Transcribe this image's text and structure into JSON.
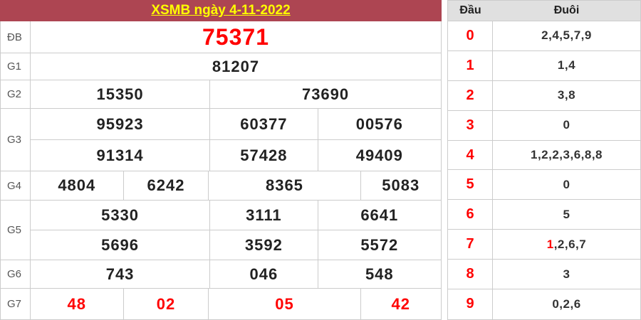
{
  "left_table": {
    "title": "XSMB ngày 4-11-2022",
    "rows": [
      {
        "label": "ĐB",
        "cells": [
          [
            "75371"
          ]
        ]
      },
      {
        "label": "G1",
        "cells": [
          [
            "81207"
          ]
        ]
      },
      {
        "label": "G2",
        "cells": [
          [
            "15350",
            "73690"
          ]
        ]
      },
      {
        "label": "G3",
        "cells": [
          [
            "95923",
            "60377",
            "00576"
          ],
          [
            "91314",
            "57428",
            "49409"
          ]
        ]
      },
      {
        "label": "G4",
        "cells": [
          [
            "4804",
            "6242",
            "8365",
            "5083"
          ]
        ]
      },
      {
        "label": "G5",
        "cells": [
          [
            "5330",
            "3111",
            "6641"
          ],
          [
            "5696",
            "3592",
            "5572"
          ]
        ]
      },
      {
        "label": "G6",
        "cells": [
          [
            "743",
            "046",
            "548"
          ]
        ]
      },
      {
        "label": "G7",
        "cells": [
          [
            "48",
            "02",
            "05",
            "42"
          ]
        ]
      }
    ]
  },
  "right_table": {
    "header": {
      "dau": "Đầu",
      "duoi": "Đuôi"
    },
    "rows": [
      {
        "dau": "0",
        "duoi_highlight": "",
        "duoi": "2,4,5,7,9"
      },
      {
        "dau": "1",
        "duoi_highlight": "",
        "duoi": "1,4"
      },
      {
        "dau": "2",
        "duoi_highlight": "",
        "duoi": "3,8"
      },
      {
        "dau": "3",
        "duoi_highlight": "",
        "duoi": "0"
      },
      {
        "dau": "4",
        "duoi_highlight": "",
        "duoi": "1,2,2,3,6,8,8"
      },
      {
        "dau": "5",
        "duoi_highlight": "",
        "duoi": "0"
      },
      {
        "dau": "6",
        "duoi_highlight": "",
        "duoi": "5"
      },
      {
        "dau": "7",
        "duoi_highlight": "1",
        "duoi": ",2,6,7"
      },
      {
        "dau": "8",
        "duoi_highlight": "",
        "duoi": "3"
      },
      {
        "dau": "9",
        "duoi_highlight": "",
        "duoi": "0,2,6"
      }
    ]
  },
  "colors": {
    "title_bar_bg": "#ad4552",
    "title_text": "#ffff00",
    "highlight_red": "#ff0000",
    "number_dark": "#222222",
    "right_header_bg": "#e0e0e0",
    "border": "#cccccc"
  }
}
